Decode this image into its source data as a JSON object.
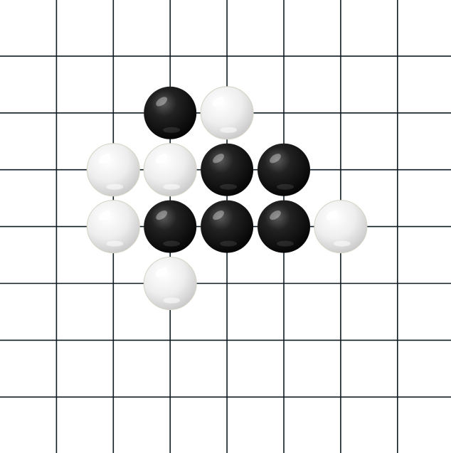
{
  "board": {
    "columns": 8,
    "rows": 8,
    "line_color": "#0f1b22",
    "background_color": "#ffffff"
  },
  "stones": [
    {
      "color": "black",
      "col": 3,
      "row": 2
    },
    {
      "color": "white",
      "col": 4,
      "row": 2
    },
    {
      "color": "white",
      "col": 2,
      "row": 3
    },
    {
      "color": "white",
      "col": 3,
      "row": 3
    },
    {
      "color": "black",
      "col": 4,
      "row": 3
    },
    {
      "color": "black",
      "col": 5,
      "row": 3
    },
    {
      "color": "white",
      "col": 2,
      "row": 4
    },
    {
      "color": "black",
      "col": 3,
      "row": 4
    },
    {
      "color": "black",
      "col": 4,
      "row": 4
    },
    {
      "color": "black",
      "col": 5,
      "row": 4
    },
    {
      "color": "white",
      "col": 6,
      "row": 4
    },
    {
      "color": "white",
      "col": 3,
      "row": 5
    }
  ]
}
